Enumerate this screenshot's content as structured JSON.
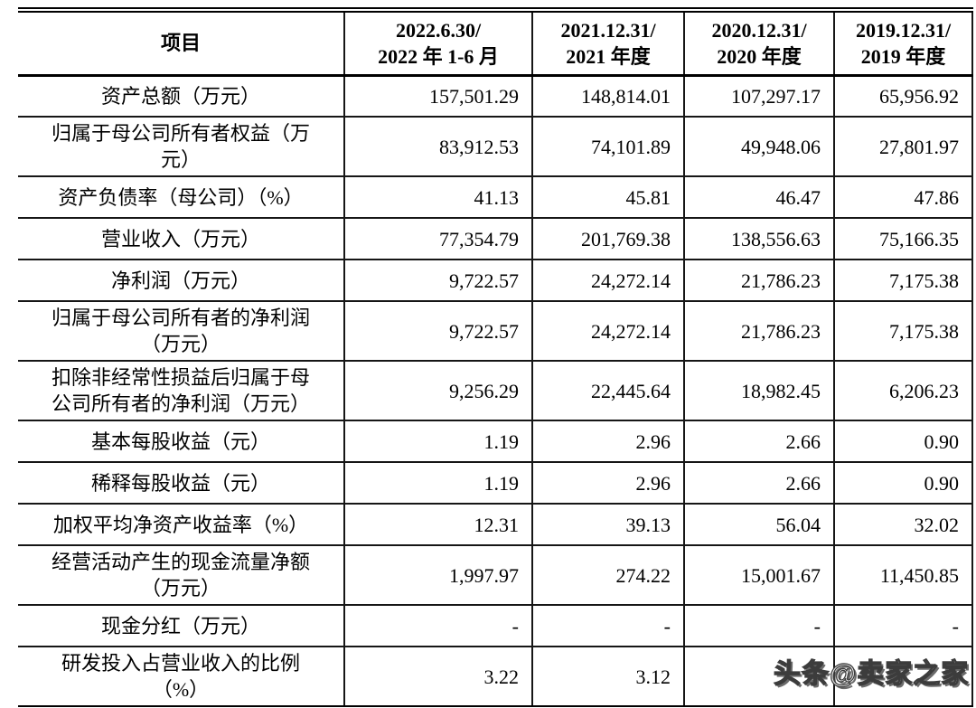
{
  "table": {
    "item_header": "项目",
    "period_headers": [
      "2022.6.30/\n2022 年 1-6 月",
      "2021.12.31/\n2021 年度",
      "2020.12.31/\n2020 年度",
      "2019.12.31/\n2019 年度"
    ],
    "rows": [
      {
        "label": "资产总额（万元）",
        "values": [
          "157,501.29",
          "148,814.01",
          "107,297.17",
          "65,956.92"
        ]
      },
      {
        "label": "归属于母公司所有者权益（万\n元）",
        "values": [
          "83,912.53",
          "74,101.89",
          "49,948.06",
          "27,801.97"
        ]
      },
      {
        "label": "资产负债率（母公司）（%）",
        "values": [
          "41.13",
          "45.81",
          "46.47",
          "47.86"
        ]
      },
      {
        "label": "营业收入（万元）",
        "values": [
          "77,354.79",
          "201,769.38",
          "138,556.63",
          "75,166.35"
        ]
      },
      {
        "label": "净利润（万元）",
        "values": [
          "9,722.57",
          "24,272.14",
          "21,786.23",
          "7,175.38"
        ]
      },
      {
        "label": "归属于母公司所有者的净利润\n（万元）",
        "values": [
          "9,722.57",
          "24,272.14",
          "21,786.23",
          "7,175.38"
        ]
      },
      {
        "label": "扣除非经常性损益后归属于母\n公司所有者的净利润（万元）",
        "values": [
          "9,256.29",
          "22,445.64",
          "18,982.45",
          "6,206.23"
        ]
      },
      {
        "label": "基本每股收益（元）",
        "values": [
          "1.19",
          "2.96",
          "2.66",
          "0.90"
        ]
      },
      {
        "label": "稀释每股收益（元）",
        "values": [
          "1.19",
          "2.96",
          "2.66",
          "0.90"
        ]
      },
      {
        "label": "加权平均净资产收益率（%）",
        "values": [
          "12.31",
          "39.13",
          "56.04",
          "32.02"
        ]
      },
      {
        "label": "经营活动产生的现金流量净额\n（万元）",
        "values": [
          "1,997.97",
          "274.22",
          "15,001.67",
          "11,450.85"
        ]
      },
      {
        "label": "现金分红（万元）",
        "values": [
          "-",
          "-",
          "-",
          "-"
        ]
      },
      {
        "label": "研发投入占营业收入的比例\n（%）",
        "values": [
          "3.22",
          "3.12",
          "",
          ""
        ]
      }
    ]
  },
  "watermark": {
    "text": "头条@卖家之家"
  },
  "colors": {
    "background": "#ffffff",
    "text": "#000000",
    "border": "#161616",
    "watermark_fill": "#fcfcfc",
    "watermark_outline": "#3c3c3c"
  }
}
